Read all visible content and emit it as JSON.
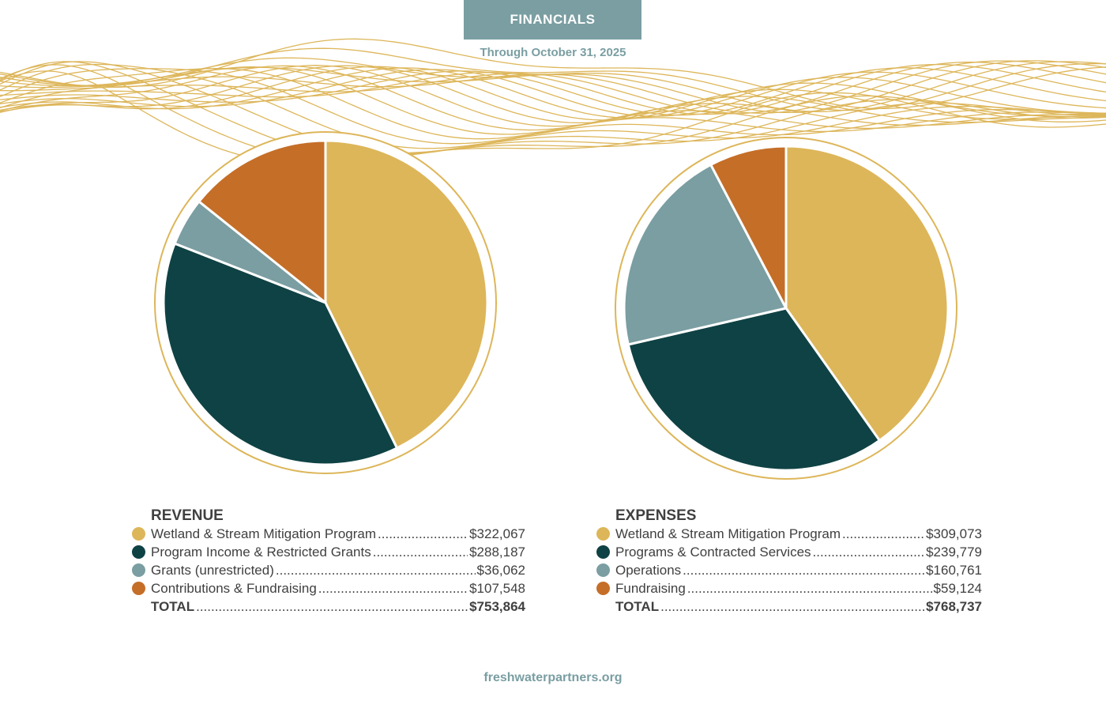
{
  "header": {
    "title": "FINANCIALS",
    "subtitle": "Through October 31, 2025"
  },
  "colors": {
    "gold": "#ddb65a",
    "dark_teal": "#0f4244",
    "slate": "#7a9ea2",
    "orange": "#c56e28",
    "ring": "#ddb65a"
  },
  "chart_data": [
    {
      "type": "pie",
      "title": "REVENUE",
      "categories": [
        "Wetland & Stream Mitigation Program",
        "Program Income & Restricted Grants",
        "Grants (unrestricted)",
        "Contributions & Fundraising"
      ],
      "values": [
        322067,
        288187,
        36062,
        107548
      ],
      "display_values": [
        "$322,067",
        "$288,187",
        "$36,062",
        "$107,548"
      ],
      "colors": [
        "#ddb65a",
        "#0f4244",
        "#7a9ea2",
        "#c56e28"
      ],
      "total_label": "TOTAL",
      "total": "$753,864"
    },
    {
      "type": "pie",
      "title": "EXPENSES",
      "categories": [
        "Wetland & Stream Mitigation Program",
        "Programs & Contracted Services",
        "Operations",
        "Fundraising"
      ],
      "values": [
        309073,
        239779,
        160761,
        59124
      ],
      "display_values": [
        "$309,073",
        "$239,779",
        "$160,761",
        "$59,124"
      ],
      "colors": [
        "#ddb65a",
        "#0f4244",
        "#7a9ea2",
        "#c56e28"
      ],
      "total_label": "TOTAL",
      "total": "$768,737"
    }
  ],
  "footer": {
    "url": "freshwaterpartners.org"
  }
}
